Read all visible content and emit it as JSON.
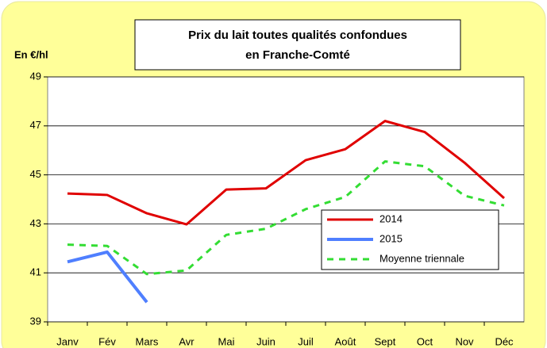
{
  "chart_data": {
    "type": "line",
    "title": [
      "Prix du lait toutes qualités confondues",
      "en Franche-Comté"
    ],
    "y_label": "En €/hl",
    "categories": [
      "Janv",
      "Fév",
      "Mars",
      "Avr",
      "Mai",
      "Juin",
      "Juil",
      "Août",
      "Sept",
      "Oct",
      "Nov",
      "Déc"
    ],
    "series": [
      {
        "name": "2014",
        "color": "#e00000",
        "dash": false,
        "values": [
          44.24,
          44.18,
          43.43,
          42.98,
          44.4,
          44.45,
          45.6,
          46.05,
          47.2,
          46.75,
          45.5,
          44.05
        ]
      },
      {
        "name": "2015",
        "color": "#4f7fff",
        "dash": false,
        "values": [
          41.45,
          41.85,
          39.8,
          null,
          null,
          null,
          null,
          null,
          null,
          null,
          null,
          null
        ]
      },
      {
        "name": "Moyenne triennale",
        "color": "#33dd33",
        "dash": true,
        "values": [
          42.15,
          42.1,
          40.95,
          41.1,
          42.55,
          42.8,
          43.6,
          44.1,
          45.55,
          45.35,
          44.15,
          43.75
        ]
      }
    ],
    "ylim": [
      39,
      49
    ],
    "yticks": [
      39,
      41,
      43,
      45,
      47,
      49
    ],
    "grid": true,
    "legend": "right"
  }
}
